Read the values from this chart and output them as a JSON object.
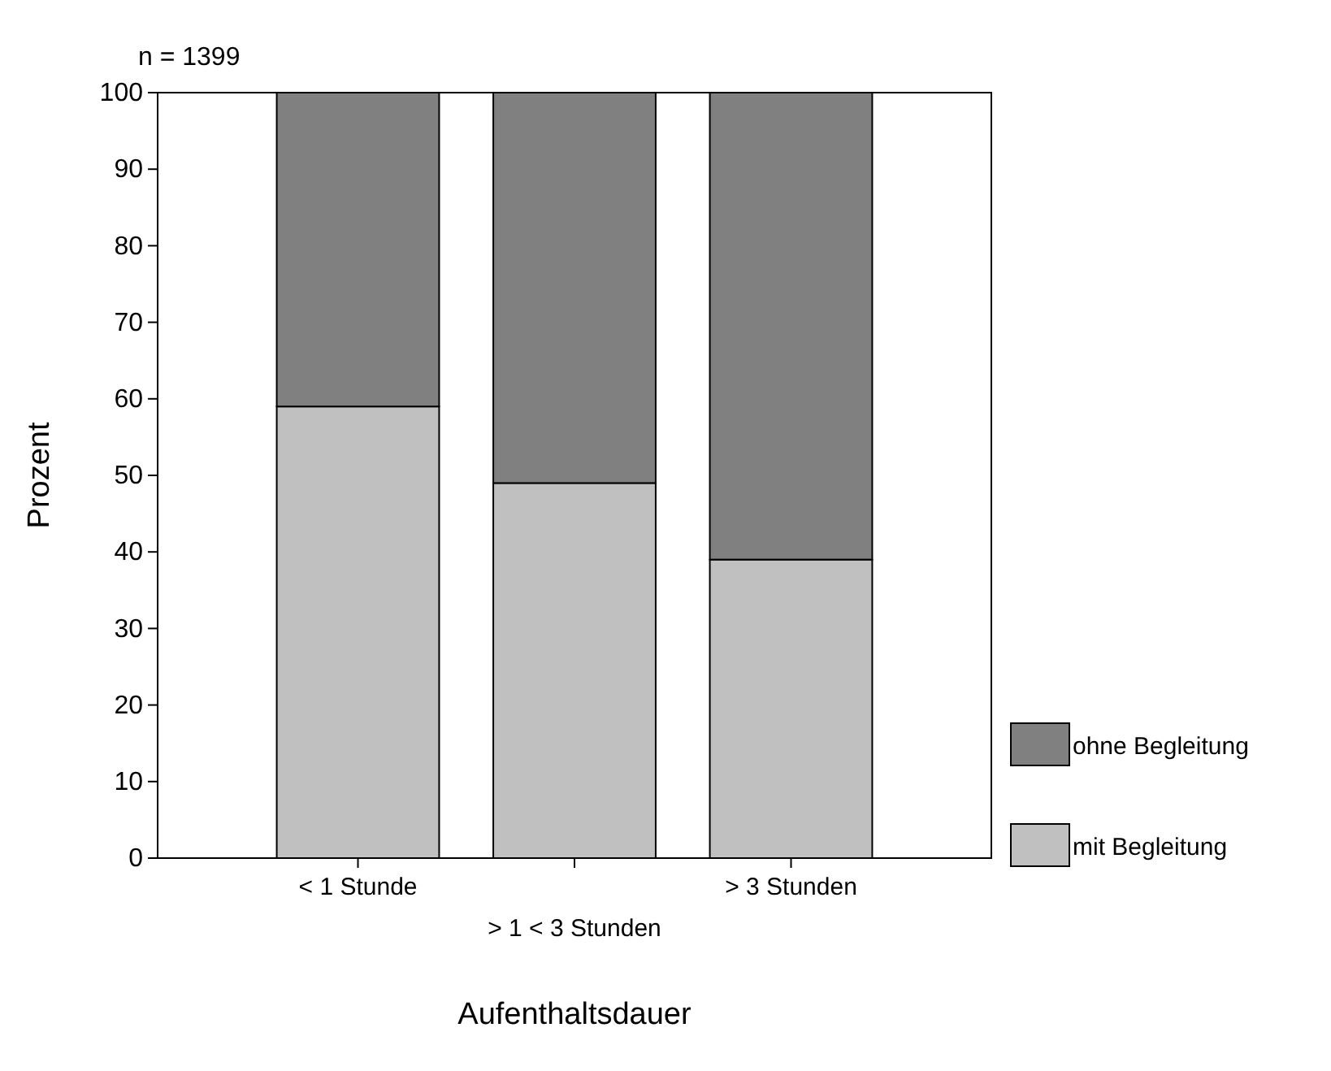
{
  "chart_data": {
    "type": "bar",
    "subtitle": "n = 1399",
    "xlabel": "Aufenthaltsdauer",
    "ylabel": "Prozent",
    "categories": [
      "< 1 Stunde",
      "> 1 < 3 Stunden",
      "> 3 Stunden"
    ],
    "stacked": true,
    "series": [
      {
        "name": "mit Begleitung",
        "color": "#c0c0c0",
        "values": [
          59,
          49,
          39
        ]
      },
      {
        "name": "ohne Begleitung",
        "color": "#808080",
        "values": [
          41,
          51,
          61
        ]
      }
    ],
    "ylim": [
      0,
      100
    ],
    "yticks": [
      0,
      10,
      20,
      30,
      40,
      50,
      60,
      70,
      80,
      90,
      100
    ],
    "legend": "right"
  }
}
